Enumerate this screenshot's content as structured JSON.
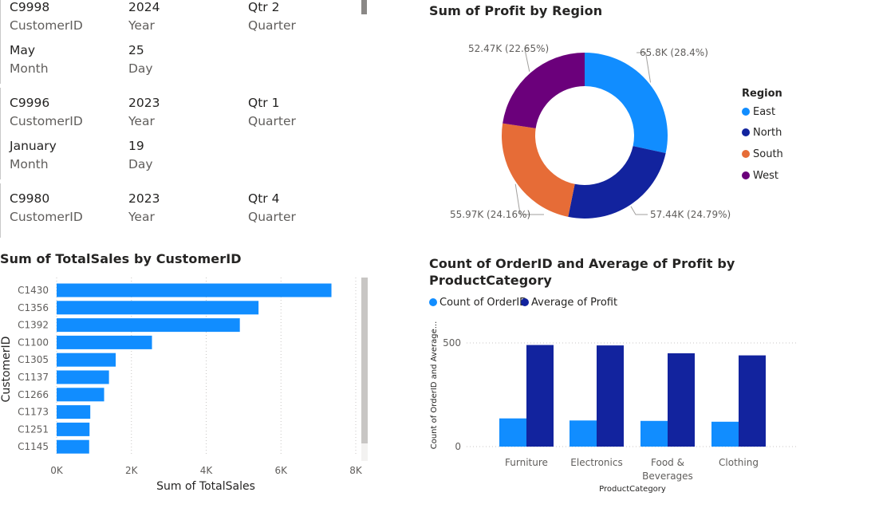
{
  "cards": [
    {
      "customer_id": "C9998",
      "customer_id_label": "CustomerID",
      "year": "2024",
      "year_label": "Year",
      "quarter": "Qtr 2",
      "quarter_label": "Quarter",
      "month": "May",
      "month_label": "Month",
      "day": "25",
      "day_label": "Day"
    },
    {
      "customer_id": "C9996",
      "customer_id_label": "CustomerID",
      "year": "2023",
      "year_label": "Year",
      "quarter": "Qtr 1",
      "quarter_label": "Quarter",
      "month": "January",
      "month_label": "Month",
      "day": "19",
      "day_label": "Day"
    },
    {
      "customer_id": "C9980",
      "customer_id_label": "CustomerID",
      "year": "2023",
      "year_label": "Year",
      "quarter": "Qtr 4",
      "quarter_label": "Quarter"
    }
  ],
  "colors": {
    "east": "#118dff",
    "north": "#12239e",
    "south": "#e66c37",
    "west": "#6b007b",
    "bar": "#118dff",
    "count": "#118dff",
    "avg": "#12239e"
  },
  "donut": {
    "title": "Sum of Profit by Region",
    "legend_title": "Region",
    "legend": [
      "East",
      "North",
      "South",
      "West"
    ],
    "labels": {
      "east": "65.8K (28.4%)",
      "north": "57.44K (24.79%)",
      "south": "55.97K (24.16%)",
      "west": "52.47K (22.65%)"
    }
  },
  "bar": {
    "title": "Sum of TotalSales by CustomerID",
    "ylabel": "CustomerID",
    "xlabel": "Sum of TotalSales",
    "ticks": [
      "0K",
      "2K",
      "4K",
      "6K",
      "8K"
    ]
  },
  "combo": {
    "title_line1": "Count of OrderID and Average of Profit by",
    "title_line2": "ProductCategory",
    "legend": [
      "Count of OrderID",
      "Average of Profit"
    ],
    "ylabel": "Count of OrderID and Average...",
    "xlabel": "ProductCategory",
    "yticks": [
      "500",
      "0"
    ],
    "categories": [
      "Furniture",
      "Electronics",
      "Food &",
      "Beverages",
      "Clothing"
    ]
  },
  "chart_data": [
    {
      "type": "pie",
      "title": "Sum of Profit by Region",
      "categories": [
        "East",
        "North",
        "South",
        "West"
      ],
      "values": [
        65800,
        57440,
        55970,
        52470
      ],
      "percents": [
        28.4,
        24.79,
        24.16,
        22.65
      ],
      "legend_position": "right"
    },
    {
      "type": "bar",
      "orientation": "horizontal",
      "title": "Sum of TotalSales by CustomerID",
      "xlabel": "Sum of TotalSales",
      "ylabel": "CustomerID",
      "categories": [
        "C1430",
        "C1356",
        "C1392",
        "C1100",
        "C1305",
        "C1137",
        "C1266",
        "C1173",
        "C1251",
        "C1145"
      ],
      "values": [
        7350,
        5400,
        4900,
        2550,
        1580,
        1400,
        1270,
        900,
        880,
        870
      ],
      "xlim": [
        0,
        8000
      ],
      "grid": true
    },
    {
      "type": "bar",
      "title": "Count of OrderID and Average of Profit by ProductCategory",
      "xlabel": "ProductCategory",
      "ylabel": "Count of OrderID and Average...",
      "categories": [
        "Furniture",
        "Electronics",
        "Food & Beverages",
        "Clothing"
      ],
      "series": [
        {
          "name": "Count of OrderID",
          "values": [
            136,
            126,
            124,
            120
          ]
        },
        {
          "name": "Average of Profit",
          "values": [
            490,
            488,
            450,
            440
          ]
        }
      ],
      "ylim": [
        0,
        500
      ],
      "legend_position": "top-left"
    }
  ]
}
